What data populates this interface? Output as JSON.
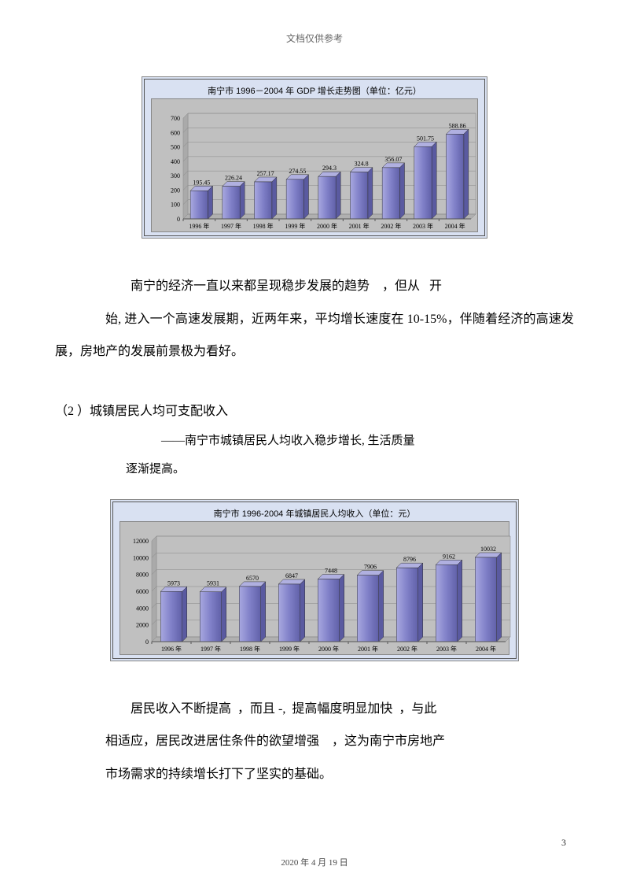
{
  "header_text": "文档仅供参考",
  "page_number": "3",
  "footer_date": "2020 年 4 月 19 日",
  "chart1": {
    "type": "bar",
    "title": "南宁市 1996－2004 年 GDP 增长走势图（单位：亿元）",
    "categories": [
      "1996 年",
      "1997 年",
      "1998 年",
      "1999 年",
      "2000 年",
      "2001 年",
      "2002 年",
      "2003 年",
      "2004 年"
    ],
    "values": [
      195.45,
      226.24,
      257.17,
      274.55,
      294.3,
      324.8,
      356.07,
      501.75,
      588.86
    ],
    "ylim": [
      0,
      700
    ],
    "ytick_step": 100,
    "title_fontsize": 11,
    "background_color": "#d9e1f2",
    "plot_background": "#c0c0c0",
    "bar_front_color": "#8080c8",
    "bar_side_color": "#5a5aa0",
    "bar_top_color": "#b0b0e0",
    "border_color": "#555555",
    "grid_color": "#888888",
    "label_fontsize": 8
  },
  "para1a": "南宁的经济一直以来都呈现稳步发展的趋势",
  "para1b": "，但从",
  "para1c": "开",
  "para2": "始, 进入一个高速发展期，近两年来，平均增长速度在 10-15%，伴随着经济的高速发展，房地产的发展前景极为看好。",
  "section2_head": "（2 ）城镇居民人均可支配收入",
  "section2_sub1": "——南宁市城镇居民人均收入稳步增长, 生活质量",
  "section2_sub2": "逐渐提高。",
  "chart2": {
    "type": "bar",
    "title": "南宁市 1996-2004 年城镇居民人均收入（单位：元）",
    "categories": [
      "1996 年",
      "1997 年",
      "1998 年",
      "1999 年",
      "2000 年",
      "2001 年",
      "2002 年",
      "2003 年",
      "2004 年"
    ],
    "values": [
      5973,
      5931,
      6570,
      6847,
      7448,
      7906,
      8796,
      9162,
      10032
    ],
    "ylim": [
      0,
      12000
    ],
    "ytick_step": 2000,
    "title_fontsize": 11,
    "background_color": "#d9e1f2",
    "plot_background": "#c0c0c0",
    "bar_front_color": "#8080c8",
    "bar_side_color": "#5a5aa0",
    "bar_top_color": "#b0b0e0",
    "border_color": "#555555",
    "grid_color": "#888888",
    "label_fontsize": 8
  },
  "para3a": "居民收入不断提高",
  "para3b": "，而且 -,",
  "para3c": "提高幅度明显加快",
  "para3d": "，与此",
  "para4": "相适应，居民改进居住条件的欲望增强",
  "para4b": "，这为南宁市房地产",
  "para5": "市场需求的持续增长打下了坚实的基础。"
}
